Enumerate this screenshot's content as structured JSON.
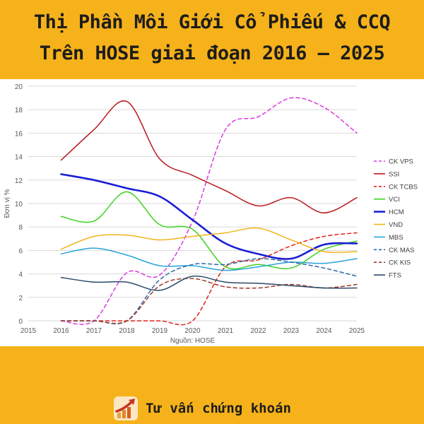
{
  "header": {
    "title_line1": "Thị Phần Môi Giới Cổ Phiếu & CCQ",
    "title_line2": "Trên HOSE giai đoạn 2016 – 2025"
  },
  "footer": {
    "brand_label": "Tư vấn chứng khoán",
    "brand_icon": "rising-arrow-icon"
  },
  "chart_data": {
    "type": "line",
    "title": "",
    "xlabel": "Nguồn: HOSE",
    "ylabel": "Đơn vị %",
    "xlim": [
      2015,
      2025
    ],
    "ylim": [
      0,
      20
    ],
    "x_ticks": [
      "2015",
      "2016",
      "2017",
      "2018",
      "2019",
      "2020",
      "2021",
      "2022",
      "2023",
      "2024",
      "2025"
    ],
    "y_ticks": [
      "0",
      "2",
      "4",
      "6",
      "8",
      "10",
      "12",
      "14",
      "16",
      "18",
      "20"
    ],
    "grid": true,
    "legend_position": "right",
    "series": [
      {
        "name": "CK VPS",
        "color": "#d83ae0",
        "dash": true,
        "x": [
          2016,
          2017,
          2018,
          2019,
          2020,
          2021,
          2022,
          2023,
          2024,
          2025
        ],
        "y": [
          0,
          0,
          4.1,
          3.9,
          8.5,
          16.3,
          17.4,
          19.0,
          18.2,
          16.0
        ]
      },
      {
        "name": "SSI",
        "color": "#b8191c",
        "dash": false,
        "x": [
          2016,
          2017,
          2018,
          2019,
          2020,
          2021,
          2022,
          2023,
          2024,
          2025
        ],
        "y": [
          13.7,
          16.3,
          18.7,
          13.8,
          12.4,
          11.1,
          9.8,
          10.5,
          9.2,
          10.5
        ]
      },
      {
        "name": "CK TCBS",
        "color": "#e0231b",
        "dash": true,
        "x": [
          2016,
          2017,
          2018,
          2019,
          2020,
          2021,
          2022,
          2023,
          2024,
          2025
        ],
        "y": [
          0,
          0,
          0,
          0,
          0,
          4.6,
          5.2,
          6.4,
          7.2,
          7.5
        ]
      },
      {
        "name": "VCI",
        "color": "#3ed21f",
        "dash": false,
        "x": [
          2016,
          2017,
          2018,
          2019,
          2020,
          2021,
          2022,
          2023,
          2024,
          2025
        ],
        "y": [
          8.9,
          8.5,
          11.0,
          8.2,
          7.8,
          4.6,
          4.8,
          4.5,
          6.1,
          6.8
        ]
      },
      {
        "name": "HCM",
        "color": "#1a1fd4",
        "dash": false,
        "x": [
          2016,
          2017,
          2018,
          2019,
          2020,
          2021,
          2022,
          2023,
          2024,
          2025
        ],
        "y": [
          12.5,
          12.0,
          11.3,
          10.6,
          8.6,
          6.6,
          5.7,
          5.3,
          6.5,
          6.6
        ]
      },
      {
        "name": "VND",
        "color": "#f2b41c",
        "dash": false,
        "x": [
          2016,
          2017,
          2018,
          2019,
          2020,
          2021,
          2022,
          2023,
          2024,
          2025
        ],
        "y": [
          6.1,
          7.2,
          7.3,
          6.9,
          7.2,
          7.5,
          7.9,
          6.9,
          5.9,
          5.9
        ]
      },
      {
        "name": "MBS",
        "color": "#2aa4d8",
        "dash": false,
        "x": [
          2016,
          2017,
          2018,
          2019,
          2020,
          2021,
          2022,
          2023,
          2024,
          2025
        ],
        "y": [
          5.7,
          6.2,
          5.6,
          4.7,
          4.7,
          4.3,
          4.6,
          5.0,
          4.9,
          5.3
        ]
      },
      {
        "name": "CK MAS",
        "color": "#2e6ba8",
        "dash": true,
        "x": [
          2016,
          2017,
          2018,
          2019,
          2020,
          2021,
          2022,
          2023,
          2024,
          2025
        ],
        "y": [
          0,
          0,
          0,
          3.5,
          4.8,
          4.8,
          5.3,
          5.0,
          4.5,
          3.8
        ]
      },
      {
        "name": "CK KIS",
        "color": "#9c3b2c",
        "dash": true,
        "x": [
          2016,
          2017,
          2018,
          2019,
          2020,
          2021,
          2022,
          2023,
          2024,
          2025
        ],
        "y": [
          0,
          0,
          0,
          3.0,
          3.6,
          2.9,
          2.8,
          3.1,
          2.8,
          3.1
        ]
      },
      {
        "name": "FTS",
        "color": "#2b4868",
        "dash": false,
        "x": [
          2016,
          2017,
          2018,
          2019,
          2020,
          2021,
          2022,
          2023,
          2024,
          2025
        ],
        "y": [
          3.7,
          3.3,
          3.3,
          2.6,
          3.8,
          3.3,
          3.2,
          3.0,
          2.8,
          2.8
        ]
      }
    ]
  }
}
